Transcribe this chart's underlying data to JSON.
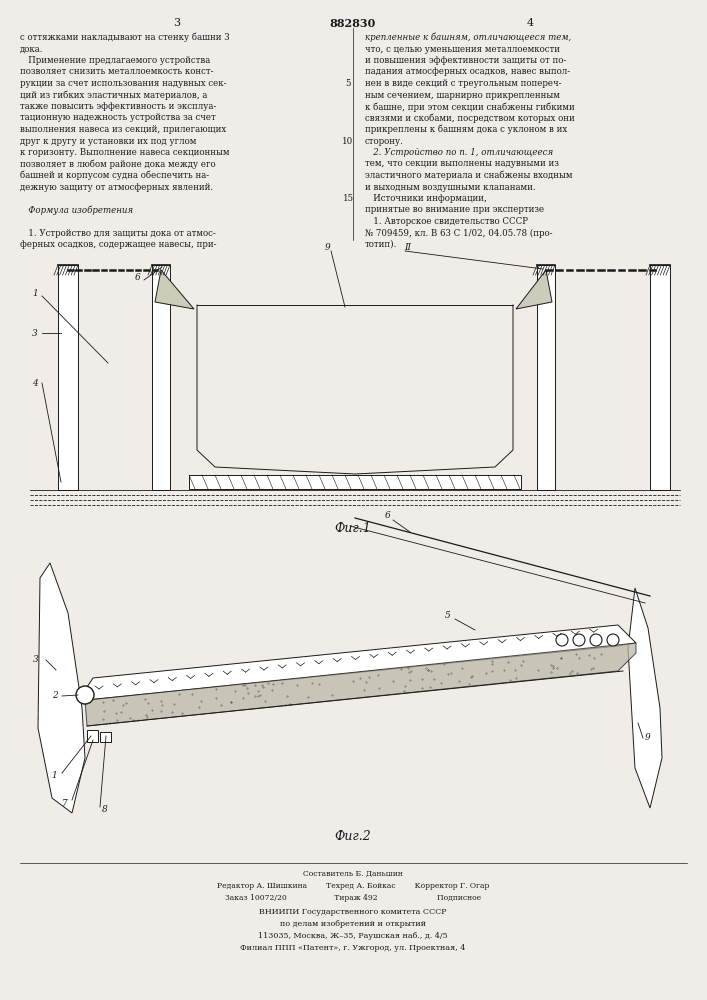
{
  "page_width": 7.07,
  "page_height": 10.0,
  "bg_color": "#f0ede8",
  "patent_number": "882830",
  "page_numbers": [
    "3",
    "4"
  ],
  "col1_text": [
    "с оттяжками накладывают на стенку башни 3",
    "дока.",
    "   Применение предлагаемого устройства",
    "позволяет снизить металлоемкость конст-",
    "рукции за счет использования надувных сек-",
    "ций из гибких эластичных материалов, а",
    "также повысить эффективность и эксплуа-",
    "тационную надежность устройства за счет",
    "выполнения навеса из секций, прилегающих",
    "друг к другу и установки их под углом",
    "к горизонту. Выполнение навеса секционным",
    "позволяет в любом районе дока между его",
    "башней и корпусом судна обеспечить на-",
    "дежную защиту от атмосферных явлений.",
    "",
    "   Формула изобретения",
    "",
    "   1. Устройство для защиты дока от атмос-",
    "ферных осадков, содержащее навесы, при-"
  ],
  "col2_text": [
    "крепленные к башням, отличающееся тем,",
    "что, с целью уменьшения металлоемкости",
    "и повышения эффективности защиты от по-",
    "падания атмосферных осадков, навес выпол-",
    "нен в виде секций с треугольным попереч-",
    "ным сечением, шарнирно прикрепленным",
    "к башне, при этом секции снабжены гибкими",
    "связями и скобами, посредством которых они",
    "прикреплены к башням дока с уклоном в их",
    "сторону.",
    "   2. Устройство по п. 1, отличающееся",
    "тем, что секции выполнены надувными из",
    "эластичного материала и снабжены входным",
    "и выходным воздушными клапанами.",
    "   Источники информации,",
    "принятые во внимание при экспертизе",
    "   1. Авторское свидетельство СССР",
    "№ 709459, кл. В 63 С 1/02, 04.05.78 (про-",
    "тотип)."
  ],
  "line_numbers": [
    "5",
    "10",
    "15"
  ],
  "fig1_caption": "Фиг.1",
  "fig2_caption": "Фиг.2",
  "footer_lines": [
    "Составитель Б. Даньшин",
    "Редактор А. Шишкина        Техред А. Бойкас        Корректор Г. Огар",
    "Заказ 10072/20                    Тираж 492                         Подписное",
    "ВНИИПИ Государственного комитета СССР",
    "по делам изобретений и открытий",
    "113035, Москва, Ж–35, Раушская наб., д. 4/5",
    "Филиал ППП «Патент», г. Ужгород, ул. Проектная, 4"
  ]
}
